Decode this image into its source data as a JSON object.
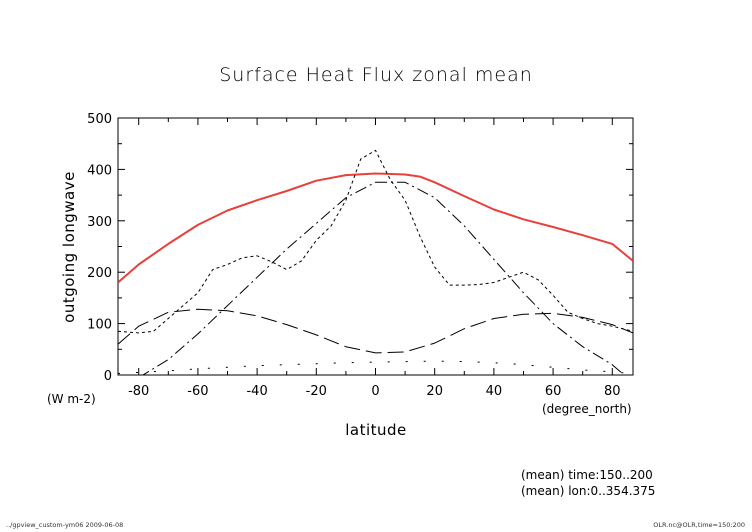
{
  "chart_data": {
    "type": "line",
    "title": "Surface Heat Flux zonal mean",
    "xlabel": "latitude",
    "ylabel": "outgoing longwave",
    "yunits": "(W m-2)",
    "xunits": "(degree_north)",
    "xlim": [
      -87,
      87
    ],
    "ylim": [
      0,
      500
    ],
    "xticks": [
      -80,
      -60,
      -40,
      -20,
      0,
      20,
      40,
      60,
      80
    ],
    "yticks": [
      0,
      100,
      200,
      300,
      400,
      500
    ],
    "xtick_labels": [
      "-80",
      "-60",
      "-40",
      "-20",
      "0",
      "20",
      "40",
      "60",
      "80"
    ],
    "ytick_labels": [
      "0",
      "100",
      "200",
      "300",
      "400",
      "500"
    ],
    "grid": false,
    "series": [
      {
        "style": "solid",
        "color": "#e8403a",
        "x": [
          -87,
          -80,
          -70,
          -60,
          -50,
          -40,
          -30,
          -20,
          -10,
          0,
          10,
          15,
          20,
          30,
          40,
          50,
          60,
          70,
          80,
          87
        ],
        "y": [
          180,
          215,
          255,
          292,
          320,
          340,
          358,
          378,
          389,
          392,
          390,
          386,
          375,
          348,
          322,
          303,
          288,
          272,
          255,
          222
        ]
      },
      {
        "style": "dashed",
        "color": "#000000",
        "x": [
          -87,
          -80,
          -75,
          -70,
          -65,
          -60,
          -55,
          -50,
          -45,
          -40,
          -35,
          -30,
          -25,
          -20,
          -15,
          -10,
          -5,
          0,
          5,
          10,
          15,
          20,
          25,
          30,
          35,
          40,
          45,
          50,
          55,
          60,
          65,
          70,
          75,
          80,
          87
        ],
        "y": [
          85,
          82,
          85,
          110,
          135,
          160,
          205,
          215,
          228,
          232,
          220,
          205,
          222,
          262,
          290,
          340,
          420,
          437,
          380,
          340,
          270,
          210,
          175,
          175,
          176,
          180,
          190,
          200,
          185,
          155,
          122,
          110,
          100,
          95,
          85
        ]
      },
      {
        "style": "dash-dot",
        "color": "#000000",
        "x": [
          -87,
          -80,
          -70,
          -60,
          -50,
          -40,
          -30,
          -20,
          -10,
          0,
          10,
          20,
          30,
          40,
          50,
          60,
          70,
          80,
          87
        ],
        "y": [
          -20,
          -5,
          30,
          80,
          135,
          190,
          245,
          295,
          345,
          375,
          375,
          345,
          290,
          225,
          160,
          100,
          55,
          20,
          -15
        ]
      },
      {
        "style": "long-dash",
        "color": "#000000",
        "x": [
          -87,
          -80,
          -70,
          -60,
          -50,
          -40,
          -30,
          -20,
          -10,
          0,
          10,
          20,
          30,
          40,
          50,
          60,
          70,
          80,
          87
        ],
        "y": [
          60,
          95,
          122,
          128,
          125,
          115,
          98,
          78,
          55,
          43,
          45,
          62,
          90,
          110,
          118,
          120,
          112,
          98,
          82
        ]
      },
      {
        "style": "dotted",
        "color": "#000000",
        "x": [
          -87,
          -80,
          -70,
          -60,
          -50,
          -40,
          -30,
          -20,
          -10,
          0,
          10,
          20,
          30,
          40,
          50,
          60,
          70,
          80,
          87
        ],
        "y": [
          3,
          5,
          8,
          12,
          15,
          18,
          20,
          22,
          24,
          25,
          26,
          27,
          26,
          24,
          20,
          15,
          10,
          6,
          3
        ]
      }
    ]
  },
  "annotations": {
    "mean_time": "(mean) time:150..200",
    "mean_lon": "(mean) lon:0..354.375",
    "footer_left": "../gpview_custom-ym06  2009-06-08",
    "footer_right": "OLR.nc@OLR,time=150:200"
  }
}
